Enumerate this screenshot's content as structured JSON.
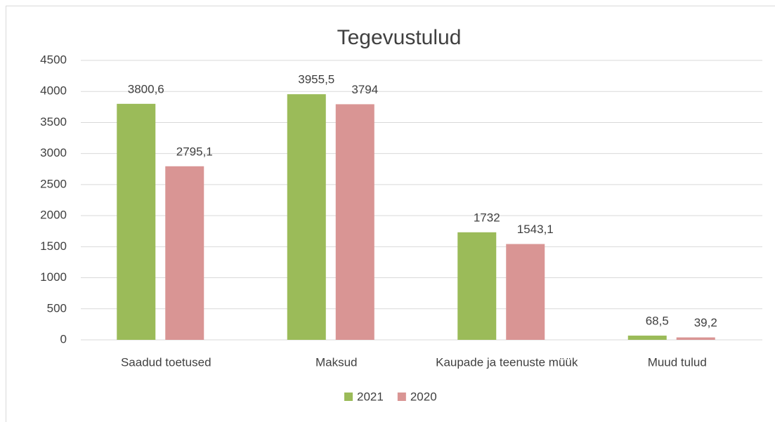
{
  "chart_data": {
    "type": "bar",
    "title": "Tegevustulud",
    "categories": [
      "Saadud toetused",
      "Maksud",
      "Kaupade ja teenuste müük",
      "Muud tulud"
    ],
    "series": [
      {
        "name": "2021",
        "color": "#9bbb59",
        "values": [
          3800.6,
          3955.5,
          1732,
          68.5
        ],
        "value_labels": [
          "3800,6",
          "3955,5",
          "1732",
          "68,5"
        ]
      },
      {
        "name": "2020",
        "color": "#d99594",
        "values": [
          2795.1,
          3794,
          1543.1,
          39.2
        ],
        "value_labels": [
          "2795,1",
          "3794",
          "1543,1",
          "39,2"
        ]
      }
    ],
    "ylim": [
      0,
      4500
    ],
    "yticks": [
      0,
      500,
      1000,
      1500,
      2000,
      2500,
      3000,
      3500,
      4000,
      4500
    ],
    "grid": true,
    "legend": "bottom"
  }
}
